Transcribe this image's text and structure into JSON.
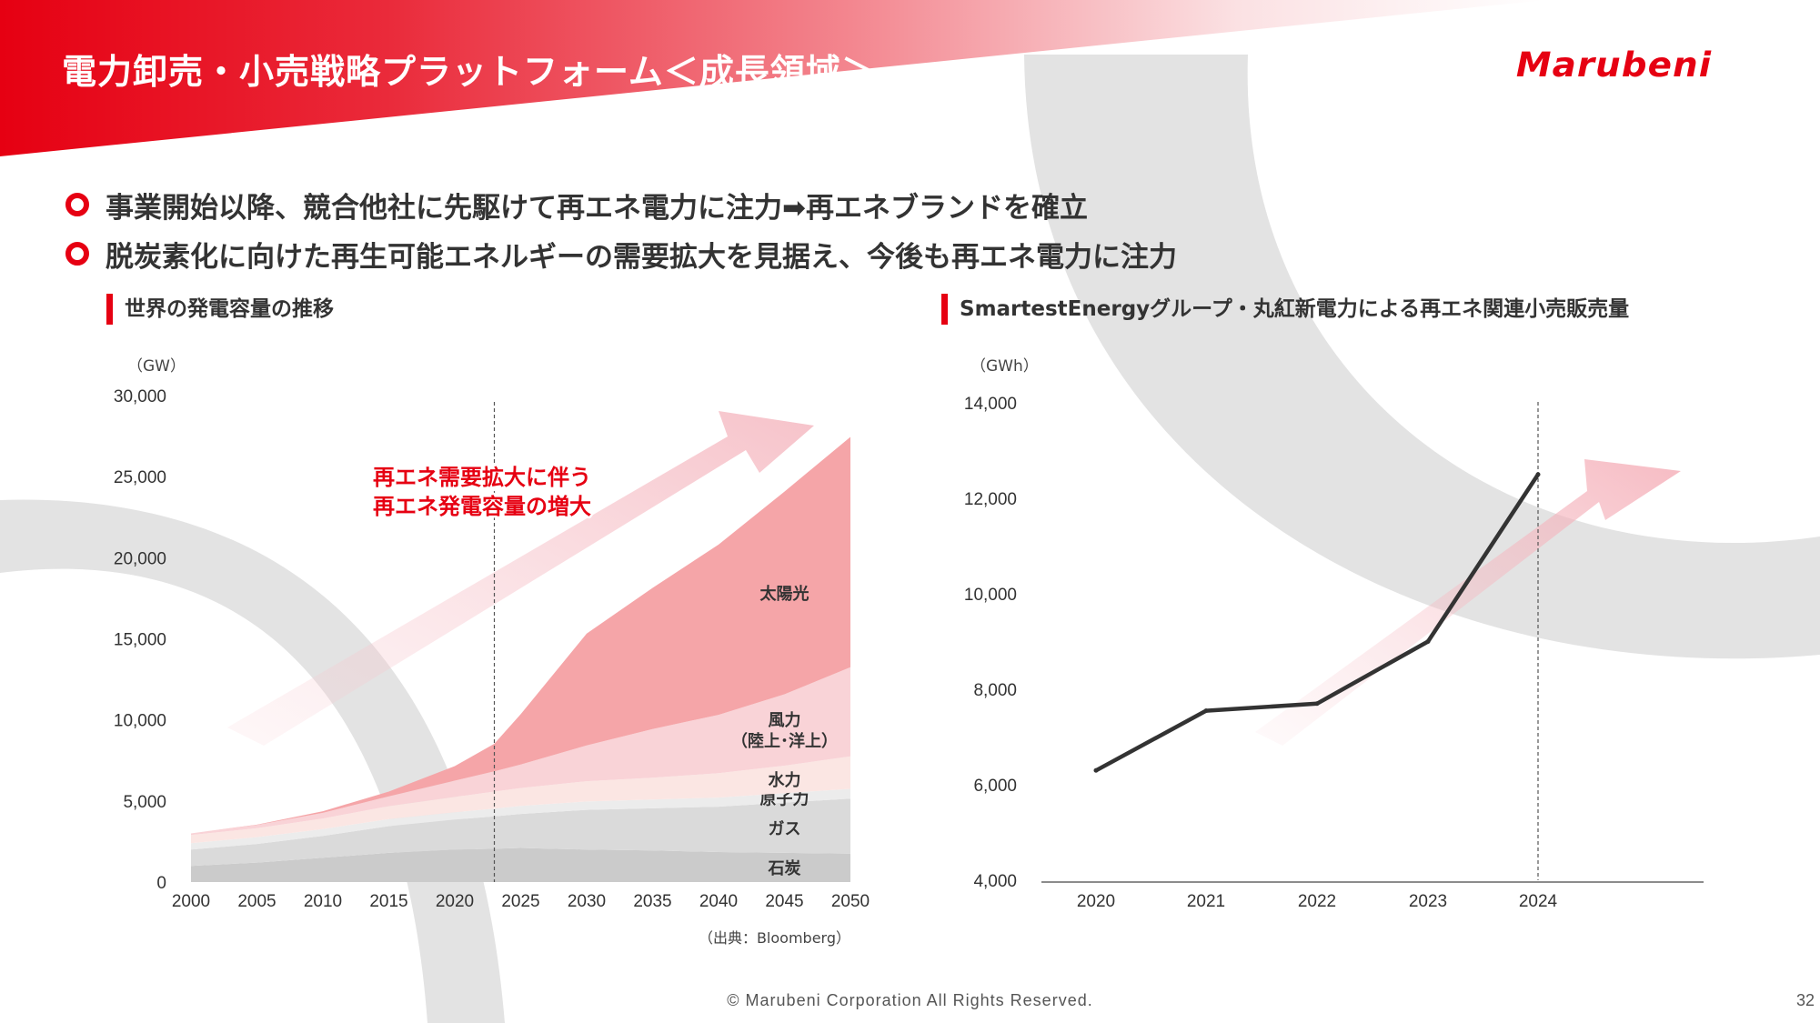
{
  "header": {
    "title": "電力卸売・小売戦略プラットフォーム＜成長領域＞",
    "logo_text": "Marubeni"
  },
  "bullets": [
    "事業開始以降、競合他社に先駆けて再エネ電力に注力➡再エネブランドを確立",
    "脱炭素化に向けた再生可能エネルギーの需要拡大を見据え、今後も再エネ電力に注力"
  ],
  "footer": {
    "copyright": "© Marubeni Corporation All Rights Reserved.",
    "page_number": "32"
  },
  "colors": {
    "brand_red": "#e60012",
    "solar": "#f5a5a8",
    "wind": "#f9d3d7",
    "hydro": "#fbe6e3",
    "nuclear": "#ececec",
    "gas": "#dadada",
    "coal": "#cbcbcb",
    "line": "#333333"
  },
  "chart_data": [
    {
      "type": "area",
      "title": "世界の発電容量の推移",
      "ylabel": "（GW）",
      "xlabel": "",
      "source_note": "（出典：Bloomberg）",
      "annotation": [
        "再エネ需要拡大に伴う",
        "再エネ発電容量の増大"
      ],
      "stacked": true,
      "x": [
        2000,
        2005,
        2010,
        2015,
        2020,
        2023,
        2025,
        2030,
        2035,
        2040,
        2045,
        2050
      ],
      "x_ticks": [
        2000,
        2005,
        2010,
        2015,
        2020,
        2025,
        2030,
        2035,
        2040,
        2045,
        2050
      ],
      "y_ticks": [
        0,
        5000,
        10000,
        15000,
        20000,
        25000,
        30000
      ],
      "ylim": [
        0,
        30000
      ],
      "divider_x": 2023,
      "series": [
        {
          "name": "石炭",
          "values": [
            1000,
            1200,
            1500,
            1800,
            2000,
            2050,
            2100,
            2000,
            1950,
            1850,
            1800,
            1750
          ]
        },
        {
          "name": "ガス",
          "values": [
            1000,
            1150,
            1350,
            1650,
            1850,
            2000,
            2100,
            2450,
            2600,
            2800,
            3100,
            3400
          ]
        },
        {
          "name": "原子力",
          "values": [
            400,
            420,
            420,
            430,
            450,
            480,
            500,
            520,
            540,
            560,
            580,
            600
          ]
        },
        {
          "name": "水力",
          "values": [
            500,
            550,
            650,
            800,
            950,
            1050,
            1100,
            1250,
            1350,
            1500,
            1700,
            2000
          ]
        },
        {
          "name": "風力（陸上・洋上）",
          "values": [
            100,
            200,
            350,
            600,
            1000,
            1250,
            1450,
            2200,
            3000,
            3600,
            4400,
            5500
          ]
        },
        {
          "name": "太陽光",
          "values": [
            0,
            20,
            100,
            300,
            900,
            1700,
            3100,
            6900,
            8700,
            10500,
            12500,
            14200
          ]
        }
      ],
      "series_labels": {
        "石炭": [
          "石炭"
        ],
        "ガス": [
          "ガス"
        ],
        "原子力": [
          "原子力"
        ],
        "水力": [
          "水力"
        ],
        "風力（陸上・洋上）": [
          "風力",
          "（陸上･洋上）"
        ],
        "太陽光": [
          "太陽光"
        ]
      }
    },
    {
      "type": "line",
      "title": "SmartestEnergyグループ・丸紅新電力による再エネ関連小売販売量",
      "ylabel": "（GWh）",
      "xlabel": "",
      "categories": [
        "2020",
        "2021",
        "2022",
        "2023",
        "2024"
      ],
      "y_ticks": [
        4000,
        6000,
        8000,
        10000,
        12000,
        14000
      ],
      "ylim": [
        4000,
        14000
      ],
      "divider_x": "2024",
      "series": [
        {
          "name": "",
          "values": [
            6300,
            7550,
            7700,
            9000,
            12500
          ]
        }
      ]
    }
  ]
}
